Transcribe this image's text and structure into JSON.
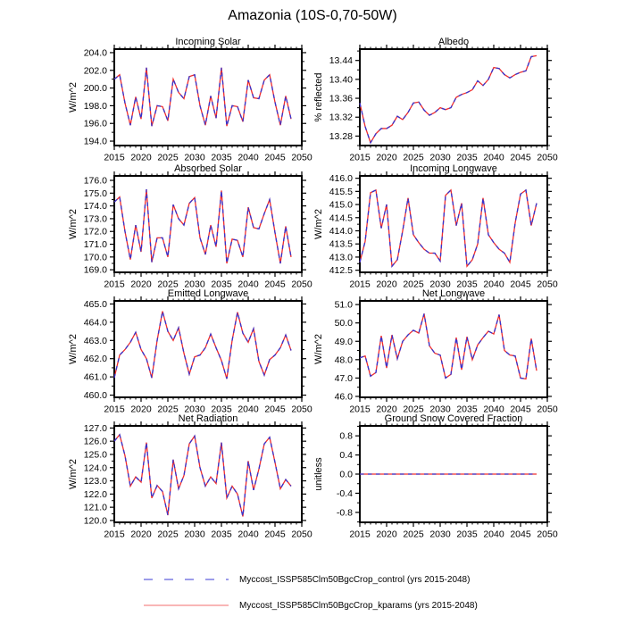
{
  "title": "Amazonia (10S-0,70-50W)",
  "chart_data": {
    "type": "line",
    "legend_position": "bottom",
    "grid": false,
    "x": [
      2015,
      2016,
      2017,
      2018,
      2019,
      2020,
      2021,
      2022,
      2023,
      2024,
      2025,
      2026,
      2027,
      2028,
      2029,
      2030,
      2031,
      2032,
      2033,
      2034,
      2035,
      2036,
      2037,
      2038,
      2039,
      2040,
      2041,
      2042,
      2043,
      2044,
      2045,
      2046,
      2047,
      2048
    ],
    "xlim": [
      2015,
      2050
    ],
    "x_ticks": [
      2015,
      2020,
      2025,
      2030,
      2035,
      2040,
      2045,
      2050
    ],
    "x_tick_labels": [
      "2015",
      "2020",
      "2025",
      "2030",
      "2035",
      "2040",
      "2045",
      "2050"
    ],
    "series": [
      {
        "name": "Myccost_ISSP585Clm50BgcCrop_control (yrs 2015-2048)",
        "style": "dashed",
        "color": "#3434cf",
        "legend_color": "#7b7be4"
      },
      {
        "name": "Myccost_ISSP585Clm50BgcCrop_kparams (yrs 2015-2048)",
        "style": "solid",
        "color": "#ef2d2d",
        "legend_color": "#f58a8a"
      }
    ],
    "series_overlap": true,
    "panels": [
      {
        "title": "Incoming Solar",
        "ylabel": "W/m^2",
        "ylim": [
          193.5,
          204.4
        ],
        "yminor": 1,
        "yticks": [
          194,
          196,
          198,
          200,
          202,
          204
        ],
        "ytick_labels": [
          "194.0",
          "196.0",
          "198.0",
          "200.0",
          "202.0",
          "204.0"
        ],
        "values": [
          201.0,
          201.5,
          198.3,
          195.8,
          199.0,
          196.5,
          202.3,
          195.7,
          198.0,
          197.9,
          196.3,
          201.0,
          199.5,
          198.8,
          201.3,
          201.5,
          198.0,
          195.8,
          199.1,
          196.6,
          202.3,
          195.7,
          198.0,
          197.9,
          196.2,
          200.9,
          198.9,
          198.8,
          200.9,
          201.5,
          198.4,
          195.8,
          199.1,
          196.5
        ]
      },
      {
        "title": "Albedo",
        "ylabel": "% reflected",
        "ylim": [
          13.26,
          13.464
        ],
        "yminor": 0.02,
        "yticks": [
          13.28,
          13.32,
          13.36,
          13.4,
          13.44
        ],
        "ytick_labels": [
          "13.28",
          "13.32",
          "13.36",
          "13.40",
          "13.44"
        ],
        "values": [
          13.35,
          13.3,
          13.266,
          13.285,
          13.296,
          13.296,
          13.303,
          13.322,
          13.315,
          13.33,
          13.35,
          13.352,
          13.335,
          13.324,
          13.33,
          13.34,
          13.336,
          13.34,
          13.362,
          13.368,
          13.372,
          13.378,
          13.397,
          13.387,
          13.4,
          13.425,
          13.423,
          13.41,
          13.403,
          13.41,
          13.415,
          13.418,
          13.448,
          13.45
        ]
      },
      {
        "title": "Absorbed Solar",
        "ylabel": "W/m^2",
        "ylim": [
          168.8,
          176.35
        ],
        "yminor": 0.5,
        "yticks": [
          169,
          170,
          171,
          172,
          173,
          174,
          175,
          176
        ],
        "ytick_labels": [
          "169.0",
          "170.0",
          "171.0",
          "172.0",
          "173.0",
          "174.0",
          "175.0",
          "176.0"
        ],
        "values": [
          174.3,
          174.7,
          172.0,
          169.8,
          172.5,
          170.4,
          175.3,
          169.6,
          171.5,
          171.5,
          170.0,
          174.1,
          173.0,
          172.5,
          174.2,
          174.65,
          171.5,
          170.2,
          172.5,
          170.8,
          175.2,
          169.5,
          171.4,
          171.3,
          170.0,
          173.9,
          172.3,
          172.2,
          173.4,
          174.5,
          171.9,
          169.5,
          172.4,
          170.0
        ]
      },
      {
        "title": "Incoming Longwave",
        "ylabel": "W/m^2",
        "ylim": [
          412.42,
          416.09
        ],
        "yminor": 0.25,
        "yticks": [
          412.5,
          413.0,
          413.5,
          414.0,
          414.5,
          415.0,
          415.5,
          416.0
        ],
        "ytick_labels": [
          "412.5",
          "413.0",
          "413.5",
          "414.0",
          "414.5",
          "415.0",
          "415.5",
          "416.0"
        ],
        "values": [
          412.8,
          413.6,
          415.45,
          415.55,
          414.1,
          415.0,
          412.65,
          412.9,
          414.0,
          415.25,
          413.85,
          413.55,
          413.3,
          413.15,
          413.15,
          412.85,
          415.35,
          415.55,
          414.2,
          415.05,
          412.65,
          412.9,
          413.5,
          415.25,
          413.85,
          413.55,
          413.3,
          413.15,
          412.8,
          414.3,
          415.4,
          415.55,
          414.2,
          415.05
        ]
      },
      {
        "title": "Emitted Longwave",
        "ylabel": "W/m^2",
        "ylim": [
          459.88,
          465.17
        ],
        "yminor": 0.5,
        "yticks": [
          460,
          461,
          462,
          463,
          464,
          465
        ],
        "ytick_labels": [
          "460.0",
          "461.0",
          "462.0",
          "463.0",
          "464.0",
          "465.0"
        ],
        "values": [
          460.95,
          462.2,
          462.5,
          462.9,
          463.45,
          462.5,
          462.0,
          460.95,
          463.0,
          464.6,
          463.5,
          463.0,
          463.7,
          462.3,
          461.15,
          462.1,
          462.2,
          462.6,
          463.35,
          462.6,
          461.9,
          460.9,
          463.0,
          464.55,
          463.4,
          462.9,
          463.65,
          461.85,
          461.1,
          461.95,
          462.2,
          462.6,
          463.3,
          462.45
        ]
      },
      {
        "title": "Net Longwave",
        "ylabel": "W/m^2",
        "ylim": [
          45.95,
          51.2
        ],
        "yminor": 0.5,
        "yticks": [
          46,
          47,
          48,
          49,
          50,
          51
        ],
        "ytick_labels": [
          "46.0",
          "47.0",
          "48.0",
          "49.0",
          "50.0",
          "51.0"
        ],
        "values": [
          48.1,
          48.2,
          47.1,
          47.3,
          49.3,
          47.55,
          49.35,
          48.05,
          49.0,
          49.35,
          49.6,
          49.45,
          50.5,
          48.75,
          48.35,
          48.25,
          47.0,
          47.2,
          49.2,
          47.45,
          49.25,
          48.0,
          48.8,
          49.2,
          49.55,
          49.4,
          50.45,
          48.5,
          48.25,
          48.2,
          47.0,
          46.95,
          49.15,
          47.4
        ]
      },
      {
        "title": "Net Radiation",
        "ylabel": "W/m^2",
        "ylim": [
          119.86,
          127.16
        ],
        "yminor": 0.5,
        "yticks": [
          120,
          121,
          122,
          123,
          124,
          125,
          126,
          127
        ],
        "ytick_labels": [
          "120.0",
          "121.0",
          "122.0",
          "123.0",
          "124.0",
          "125.0",
          "126.0",
          "127.0"
        ],
        "values": [
          126.0,
          126.5,
          124.9,
          122.6,
          123.3,
          122.9,
          125.9,
          121.7,
          122.65,
          122.2,
          120.4,
          124.6,
          122.4,
          123.4,
          125.8,
          126.4,
          124.0,
          122.6,
          123.3,
          122.8,
          125.9,
          121.7,
          122.6,
          122.0,
          120.3,
          124.5,
          122.3,
          123.9,
          125.8,
          126.3,
          124.4,
          122.4,
          123.1,
          122.6
        ]
      },
      {
        "title": "Ground Snow Covered Fraction",
        "ylabel": "unitless",
        "ylim": [
          -1.008,
          1.008
        ],
        "yminor": 0.2,
        "yticks": [
          -0.8,
          -0.4,
          0.0,
          0.4,
          0.8
        ],
        "ytick_labels": [
          "-0.8",
          "-0.4",
          "0.0",
          "0.4",
          "0.8"
        ],
        "values": [
          0,
          0,
          0,
          0,
          0,
          0,
          0,
          0,
          0,
          0,
          0,
          0,
          0,
          0,
          0,
          0,
          0,
          0,
          0,
          0,
          0,
          0,
          0,
          0,
          0,
          0,
          0,
          0,
          0,
          0,
          0,
          0,
          0,
          0
        ]
      }
    ]
  }
}
